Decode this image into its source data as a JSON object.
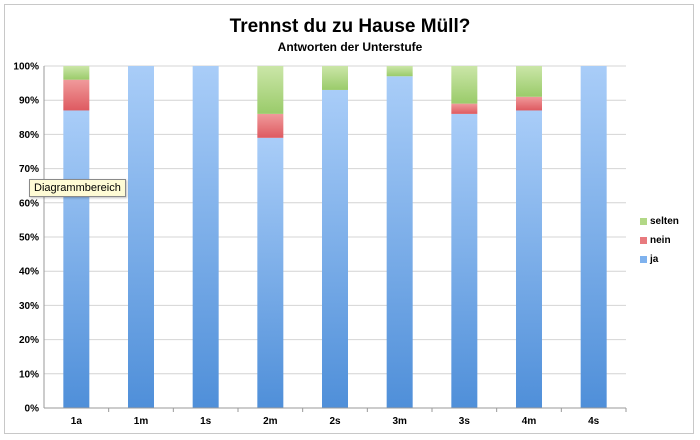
{
  "chart_data": {
    "type": "bar",
    "stacked": true,
    "title": "Trennst du zu Hause Müll?",
    "subtitle": "Antworten der Unterstufe",
    "categories": [
      "1a",
      "1m",
      "1s",
      "2m",
      "2s",
      "3m",
      "3s",
      "4m",
      "4s"
    ],
    "series": [
      {
        "name": "ja",
        "color": "#7fb2ee",
        "values": [
          87,
          100,
          100,
          79,
          93,
          97,
          86,
          87,
          100
        ]
      },
      {
        "name": "nein",
        "color": "#e87a7e",
        "values": [
          9,
          0,
          0,
          7,
          0,
          0,
          3,
          4,
          0
        ]
      },
      {
        "name": "selten",
        "color": "#b2d886",
        "values": [
          4,
          0,
          0,
          14,
          7,
          3,
          11,
          9,
          0
        ]
      }
    ],
    "ylim": [
      0,
      100
    ],
    "yticks": [
      "0%",
      "10%",
      "20%",
      "30%",
      "40%",
      "50%",
      "60%",
      "70%",
      "80%",
      "90%",
      "100%"
    ],
    "grid": true,
    "legend": "right",
    "legend_order": [
      "selten",
      "nein",
      "ja"
    ]
  },
  "tooltip": {
    "text": "Diagrammbereich"
  }
}
